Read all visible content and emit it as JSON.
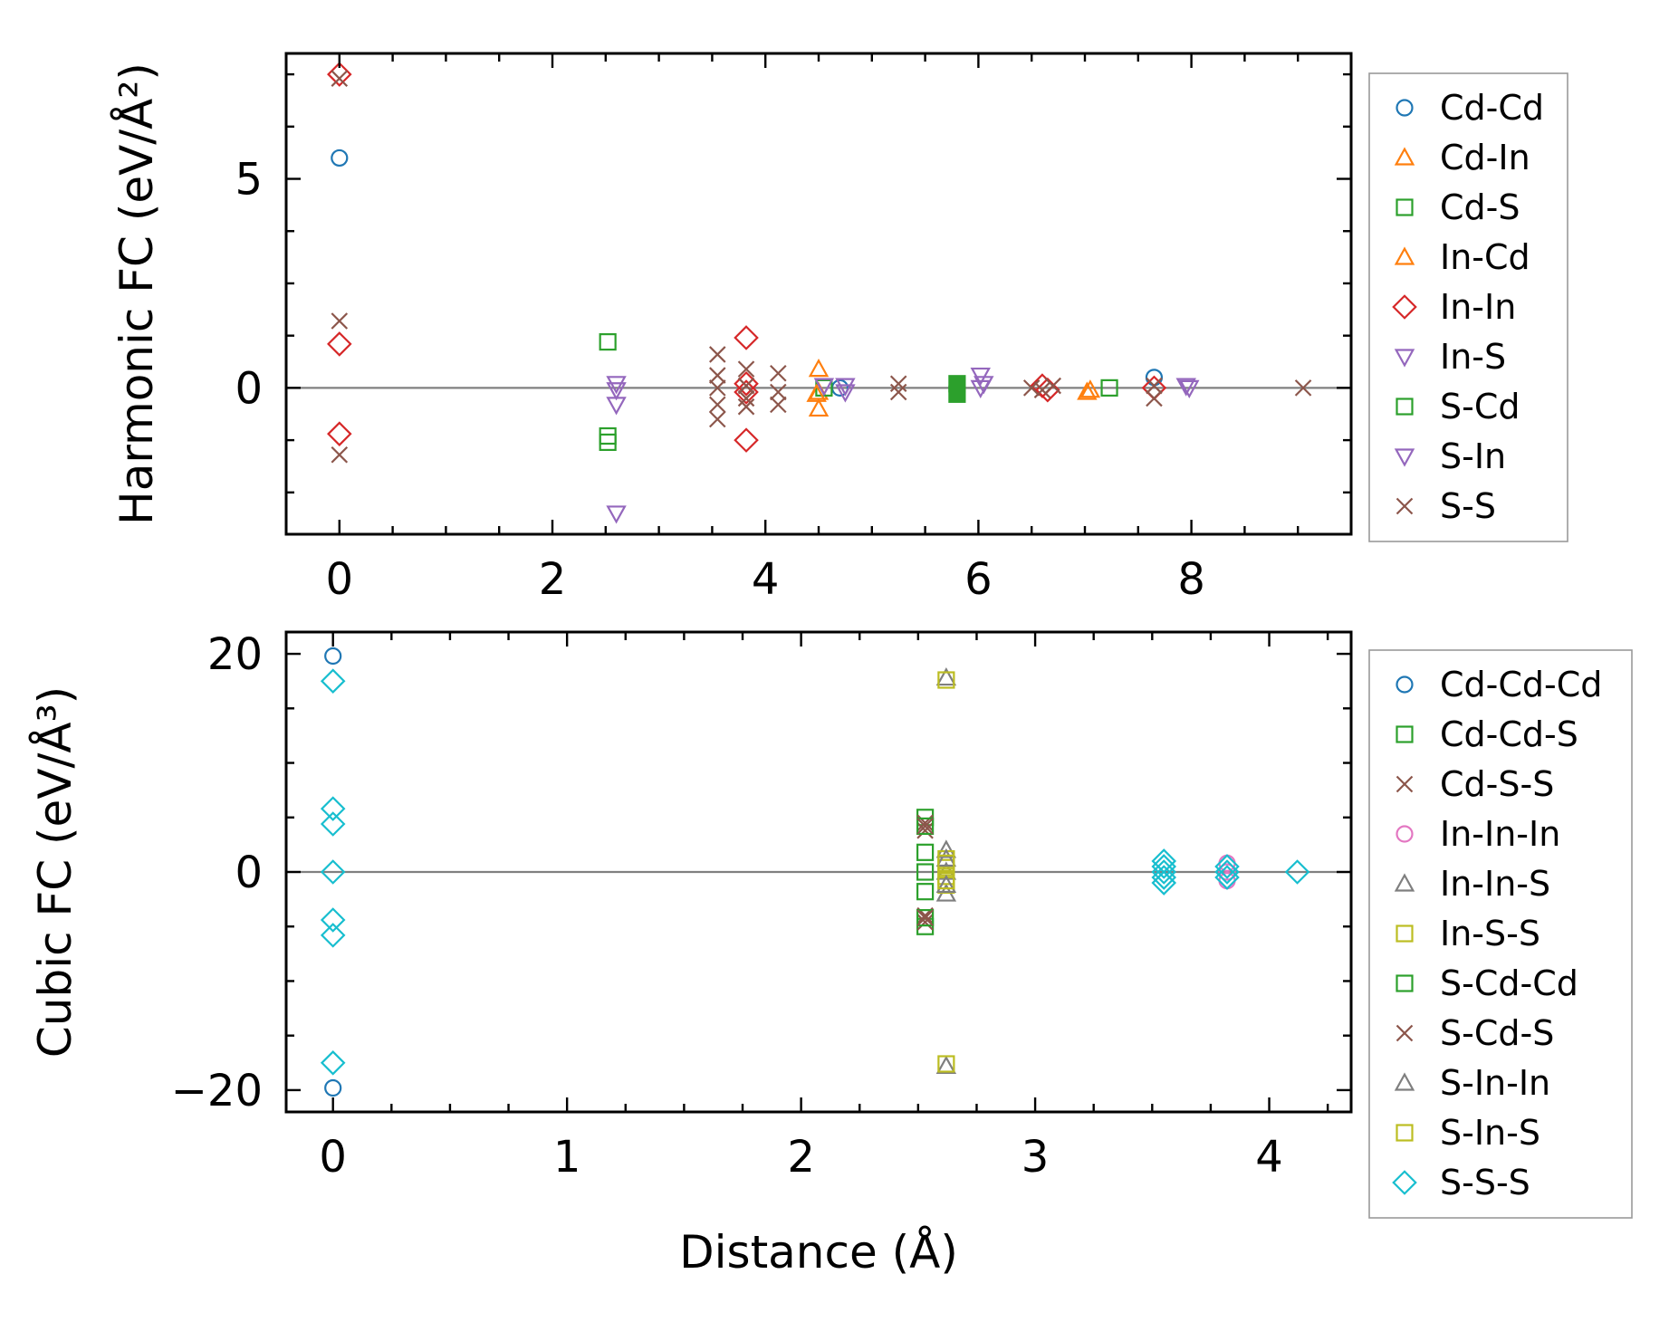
{
  "chart_data": [
    {
      "type": "scatter",
      "panel": "top",
      "ylabel": "Harmonic FC (eV/Å²)",
      "xlim": [
        -0.5,
        9.5
      ],
      "ylim": [
        -3.5,
        8
      ],
      "xticks": [
        0,
        2,
        4,
        6,
        8
      ],
      "yticks": [
        0,
        5
      ],
      "xtick_labels": [
        "0",
        "2",
        "4",
        "6",
        "8"
      ],
      "ytick_labels": [
        "0",
        "5"
      ],
      "grid": false,
      "zero_line": true,
      "legend_position": "outside-right",
      "series": [
        {
          "name": "Cd-Cd",
          "marker": "circle",
          "color": "#1f77b4",
          "x": [
            0,
            4.7,
            7.65
          ],
          "y": [
            5.5,
            0,
            0.25
          ]
        },
        {
          "name": "Cd-In",
          "marker": "triangle-up",
          "color": "#ff7f0e",
          "x": [
            4.5,
            4.5,
            4.5,
            7.05
          ],
          "y": [
            0.45,
            -0.1,
            -0.5,
            -0.05
          ]
        },
        {
          "name": "Cd-S",
          "marker": "square",
          "color": "#2ca02c",
          "x": [
            2.52,
            2.52,
            2.52,
            4.55,
            7.23
          ],
          "y": [
            1.1,
            -1.15,
            -1.3,
            0,
            0
          ]
        },
        {
          "name": "In-Cd",
          "marker": "triangle-up",
          "color": "#ff7f0e",
          "x": [
            4.48,
            7.02
          ],
          "y": [
            -0.15,
            -0.1
          ]
        },
        {
          "name": "In-In",
          "marker": "diamond",
          "color": "#d62728",
          "x": [
            0,
            0,
            0,
            3.82,
            3.82,
            3.82,
            3.82,
            6.6,
            6.65,
            7.65
          ],
          "y": [
            7.5,
            1.05,
            -1.1,
            1.2,
            0.1,
            -0.1,
            -1.25,
            0.05,
            -0.05,
            0
          ]
        },
        {
          "name": "In-S",
          "marker": "triangle-down",
          "color": "#9467bd",
          "x": [
            2.6,
            2.6,
            2.6,
            2.6,
            4.55,
            4.75,
            6.02,
            6.02,
            7.98
          ],
          "y": [
            0.1,
            -0.05,
            -0.4,
            -3.0,
            0.05,
            0.05,
            0.3,
            0,
            0
          ]
        },
        {
          "name": "S-Cd",
          "marker": "square",
          "color": "#2ca02c",
          "x": [
            5.8,
            5.8
          ],
          "y": [
            0.1,
            -0.15
          ],
          "filled": true
        },
        {
          "name": "S-In",
          "marker": "triangle-down",
          "color": "#9467bd",
          "x": [
            4.75,
            6.05,
            7.95
          ],
          "y": [
            -0.1,
            0.1,
            0.05
          ]
        },
        {
          "name": "S-S",
          "marker": "x",
          "color": "#8c564b",
          "x": [
            0,
            0,
            0,
            3.55,
            3.55,
            3.55,
            3.55,
            3.55,
            3.82,
            3.82,
            3.82,
            3.82,
            4.12,
            4.12,
            4.12,
            5.25,
            5.25,
            6.5,
            6.6,
            6.7,
            7.65,
            7.65,
            9.05
          ],
          "y": [
            7.4,
            1.6,
            -1.6,
            0.8,
            0.3,
            0,
            -0.4,
            -0.75,
            0.45,
            0.05,
            -0.25,
            -0.45,
            0.35,
            -0.1,
            -0.4,
            0.1,
            -0.1,
            0,
            -0.05,
            0.05,
            0.05,
            -0.25,
            0
          ]
        }
      ]
    },
    {
      "type": "scatter",
      "panel": "bottom",
      "ylabel": "Cubic FC (eV/Å³)",
      "xlabel": "Distance (Å)",
      "xlim": [
        -0.2,
        4.35
      ],
      "ylim": [
        -22,
        22
      ],
      "xticks": [
        0,
        1,
        2,
        3,
        4
      ],
      "yticks": [
        -20,
        0,
        20
      ],
      "xtick_labels": [
        "0",
        "1",
        "2",
        "3",
        "4"
      ],
      "ytick_labels": [
        "−20",
        "0",
        "20"
      ],
      "grid": false,
      "zero_line": true,
      "legend_position": "outside-right",
      "series": [
        {
          "name": "Cd-Cd-Cd",
          "marker": "circle",
          "color": "#1f77b4",
          "x": [
            0,
            0
          ],
          "y": [
            19.8,
            -19.8
          ]
        },
        {
          "name": "Cd-Cd-S",
          "marker": "square",
          "color": "#2ca02c",
          "x": [
            2.53,
            2.53,
            2.53,
            2.53,
            2.53
          ],
          "y": [
            5,
            1.8,
            0,
            -1.8,
            -5
          ]
        },
        {
          "name": "Cd-S-S",
          "marker": "x",
          "color": "#8c564b",
          "x": [
            2.53,
            2.53,
            2.53,
            2.53
          ],
          "y": [
            4.5,
            3.8,
            -4,
            -4.6
          ]
        },
        {
          "name": "In-In-In",
          "marker": "circle",
          "color": "#e377c2",
          "x": [
            3.82,
            3.82,
            3.82
          ],
          "y": [
            0.8,
            0,
            -0.8
          ]
        },
        {
          "name": "In-In-S",
          "marker": "triangle-up",
          "color": "#7f7f7f",
          "x": [
            2.62,
            2.62,
            2.62,
            2.62,
            2.62
          ],
          "y": [
            17.8,
            2,
            0,
            -2,
            -17.8
          ]
        },
        {
          "name": "In-S-S",
          "marker": "square",
          "color": "#bcbd22",
          "x": [
            2.62,
            2.62,
            2.62,
            2.62,
            2.62,
            2.62
          ],
          "y": [
            17.6,
            1.2,
            0.4,
            -0.4,
            -1.2,
            -17.6
          ]
        },
        {
          "name": "S-Cd-Cd",
          "marker": "square",
          "color": "#2ca02c",
          "x": [
            2.53,
            2.53
          ],
          "y": [
            4.2,
            -4.2
          ]
        },
        {
          "name": "S-Cd-S",
          "marker": "x",
          "color": "#8c564b",
          "x": [
            2.53,
            2.53
          ],
          "y": [
            4.2,
            -4.2
          ]
        },
        {
          "name": "S-In-In",
          "marker": "triangle-up",
          "color": "#7f7f7f",
          "x": [
            2.62,
            2.62
          ],
          "y": [
            1.2,
            -1.2
          ]
        },
        {
          "name": "S-In-S",
          "marker": "square",
          "color": "#bcbd22",
          "x": [
            2.62,
            2.62
          ],
          "y": [
            0.8,
            -0.8
          ]
        },
        {
          "name": "S-S-S",
          "marker": "diamond",
          "color": "#17becf",
          "x": [
            0,
            0,
            0,
            0,
            0,
            0,
            0,
            3.55,
            3.55,
            3.55,
            3.55,
            3.55,
            3.82,
            3.82,
            3.82,
            4.12
          ],
          "y": [
            17.5,
            5.8,
            4.4,
            -4.4,
            -5.8,
            -17.5,
            0,
            1,
            0.5,
            0,
            -0.5,
            -1,
            0.5,
            0,
            -0.5,
            0
          ]
        }
      ]
    }
  ]
}
